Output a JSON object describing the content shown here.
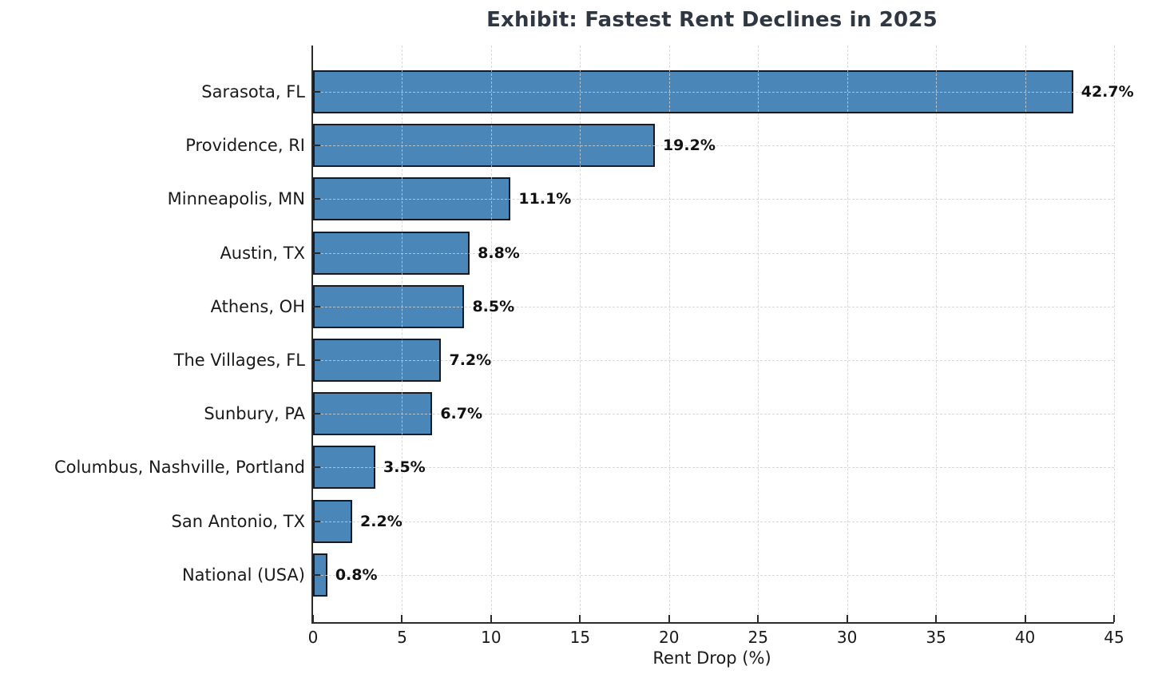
{
  "chart_data": {
    "type": "bar",
    "orientation": "horizontal",
    "title": "Exhibit: Fastest Rent Declines in 2025",
    "xlabel": "Rent Drop (%)",
    "categories": [
      "Sarasota, FL",
      "Providence, RI",
      "Minneapolis, MN",
      "Austin, TX",
      "Athens, OH",
      "The Villages, FL",
      "Sunbury, PA",
      "Columbus, Nashville, Portland",
      "San Antonio, TX",
      "National (USA)"
    ],
    "values": [
      42.7,
      19.2,
      11.1,
      8.8,
      8.5,
      7.2,
      6.7,
      3.5,
      2.2,
      0.8
    ],
    "value_labels": [
      "42.7%",
      "19.2%",
      "11.1%",
      "8.8%",
      "8.5%",
      "7.2%",
      "6.7%",
      "3.5%",
      "2.2%",
      "0.8%"
    ],
    "xlim": [
      0,
      45
    ],
    "xticks": [
      0,
      5,
      10,
      15,
      20,
      25,
      30,
      35,
      40,
      45
    ],
    "grid": "dashed-both-axes",
    "legend": "none",
    "colors": {
      "bar_fill": "#4a86b8",
      "bar_edge": "#151a23",
      "grid": "#d0d0d0",
      "spine": "#2b2b2b",
      "tick_mark": "#2b2b2b",
      "title_text": "#2f3742",
      "axis_text": "#1a1a1a",
      "value_text": "#111111"
    }
  }
}
